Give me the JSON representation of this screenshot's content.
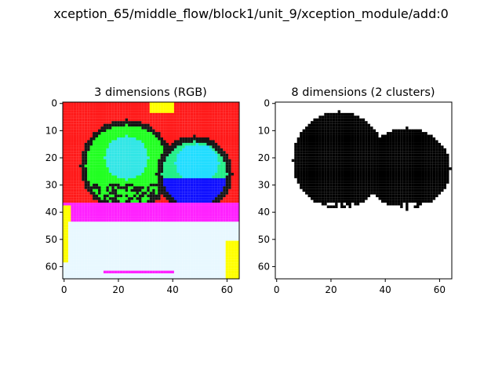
{
  "figure": {
    "suptitle": "xception_65/middle_flow/block1/unit_9/xception_module/add:0"
  },
  "chart_data": [
    {
      "type": "heatmap",
      "title": "3 dimensions (RGB)",
      "xlabel": "",
      "ylabel": "",
      "xlim": [
        -0.5,
        64.5
      ],
      "ylim": [
        64.5,
        -0.5
      ],
      "xticks": [
        0,
        20,
        40,
        60
      ],
      "yticks": [
        0,
        10,
        20,
        30,
        40,
        50,
        60
      ],
      "colors": {
        "background": "#ff1a1a",
        "blob_left": "#22ff22",
        "blob_left_face": "#33e6e6",
        "blob_right": "#22ee88",
        "blob_right_face": "#22ddff",
        "blob_right_base": "#1010ff",
        "outline": "#151515",
        "ground": "#ff22ff",
        "floor": "#e8f8ff",
        "accent_yellow": "#ffff00",
        "accent_magenta": "#ff22ff"
      }
    },
    {
      "type": "heatmap",
      "title": "8 dimensions (2 clusters)",
      "xlabel": "",
      "ylabel": "",
      "xlim": [
        -0.5,
        64.5
      ],
      "ylim": [
        64.5,
        -0.5
      ],
      "xticks": [
        0,
        20,
        40,
        60
      ],
      "yticks": [
        0,
        10,
        20,
        30,
        40,
        50,
        60
      ],
      "colors": {
        "cluster_0": "#ffffff",
        "cluster_1": "#000000"
      }
    }
  ]
}
